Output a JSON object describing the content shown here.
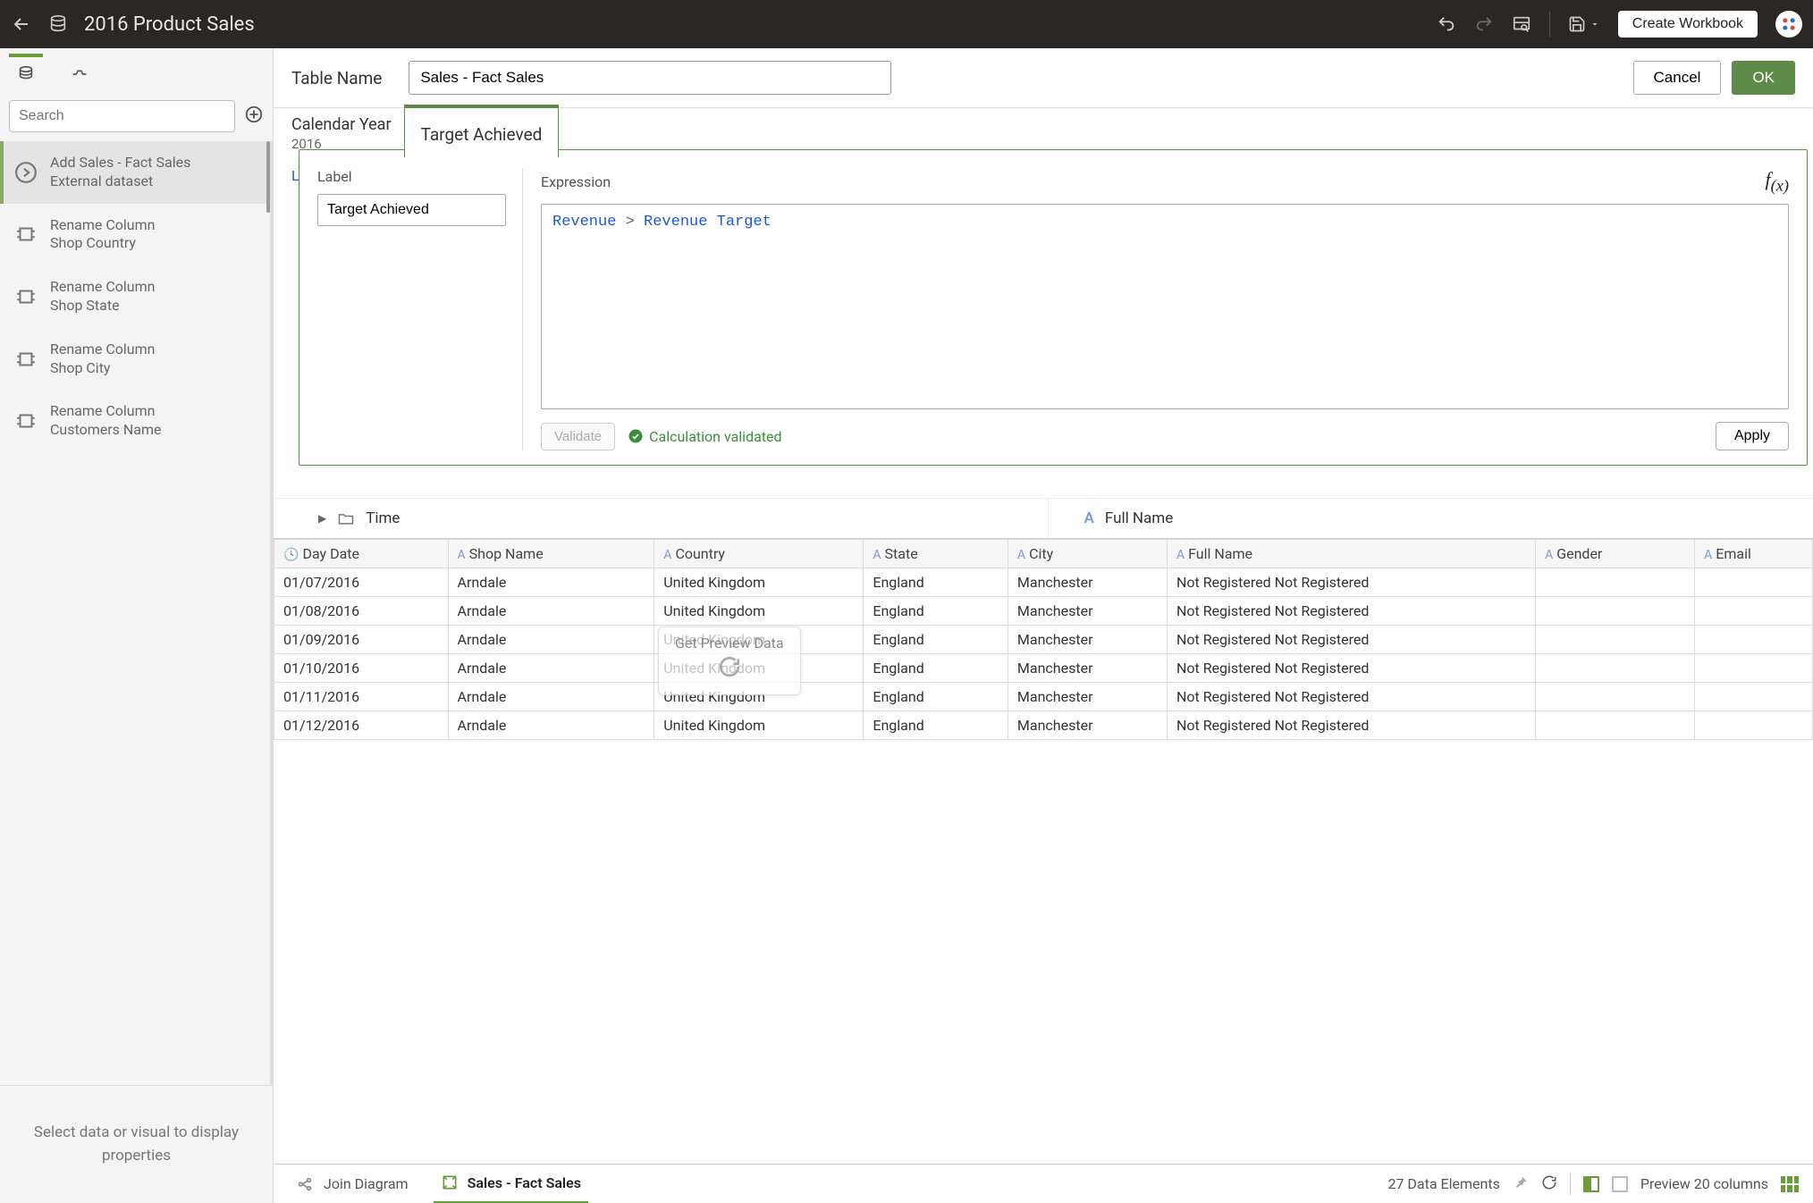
{
  "topbar": {
    "title": "2016 Product Sales",
    "create_button": "Create Workbook"
  },
  "sidebar": {
    "search_placeholder": "Search",
    "steps": [
      {
        "line1": "Add Sales - Fact Sales",
        "line2": "External dataset"
      },
      {
        "line1": "Rename Column",
        "line2": "Shop Country"
      },
      {
        "line1": "Rename Column",
        "line2": "Shop State"
      },
      {
        "line1": "Rename Column",
        "line2": "Shop City"
      },
      {
        "line1": "Rename Column",
        "line2": "Customers Name"
      }
    ],
    "props_placeholder": "Select data or visual to display properties"
  },
  "tablebar": {
    "label": "Table Name",
    "value": "Sales - Fact Sales",
    "cancel": "Cancel",
    "ok": "OK"
  },
  "column_header": {
    "first_label": "Calendar Year",
    "first_value": "2016",
    "active_tab": "Target Achieved",
    "behind_text": "Lo"
  },
  "editor": {
    "label_label": "Label",
    "label_value": "Target Achieved",
    "expr_label": "Expression",
    "expr_col1": "Revenue",
    "expr_op": ">",
    "expr_col2": "Revenue Target",
    "validate": "Validate",
    "validated_msg": "Calculation validated",
    "apply": "Apply",
    "fx": "f(x)"
  },
  "folders": {
    "left": "Time",
    "right": "Full Name"
  },
  "table": {
    "headers": {
      "date": "Day Date",
      "shop": "Shop Name",
      "country": "Country",
      "state": "State",
      "city": "City",
      "fullname": "Full Name",
      "gender": "Gender",
      "email": "Email"
    },
    "rows": [
      {
        "date": "01/07/2016",
        "shop": "Arndale",
        "country": "United Kingdom",
        "state": "England",
        "city": "Manchester",
        "fullname": "Not Registered  Not Registered",
        "gender": "",
        "email": ""
      },
      {
        "date": "01/08/2016",
        "shop": "Arndale",
        "country": "United Kingdom",
        "state": "England",
        "city": "Manchester",
        "fullname": "Not Registered  Not Registered",
        "gender": "",
        "email": ""
      },
      {
        "date": "01/09/2016",
        "shop": "Arndale",
        "country": "United Kingdom",
        "state": "England",
        "city": "Manchester",
        "fullname": "Not Registered  Not Registered",
        "gender": "",
        "email": ""
      },
      {
        "date": "01/10/2016",
        "shop": "Arndale",
        "country": "United Kingdom",
        "state": "England",
        "city": "Manchester",
        "fullname": "Not Registered  Not Registered",
        "gender": "",
        "email": ""
      },
      {
        "date": "01/11/2016",
        "shop": "Arndale",
        "country": "United Kingdom",
        "state": "England",
        "city": "Manchester",
        "fullname": "Not Registered  Not Registered",
        "gender": "",
        "email": ""
      },
      {
        "date": "01/12/2016",
        "shop": "Arndale",
        "country": "United Kingdom",
        "state": "England",
        "city": "Manchester",
        "fullname": "Not Registered  Not Registered",
        "gender": "",
        "email": ""
      }
    ],
    "overlay": "Get Preview Data"
  },
  "bottombar": {
    "tab_join": "Join Diagram",
    "tab_table": "Sales - Fact Sales",
    "elements": "27 Data Elements",
    "preview": "Preview 20 columns"
  },
  "colors": {
    "accent": "#6a9c3a",
    "accent_dark": "#5e8a4a",
    "link": "#2257d6"
  }
}
